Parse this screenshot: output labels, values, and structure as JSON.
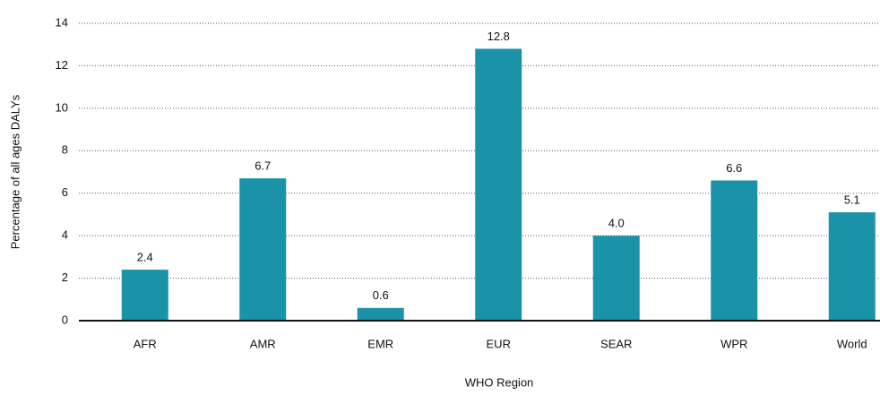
{
  "chart_data": {
    "type": "bar",
    "x_label": "WHO Region",
    "y_label": "Percentage of all ages DALYs",
    "categories": [
      "AFR",
      "AMR",
      "EMR",
      "EUR",
      "SEAR",
      "WPR",
      "World"
    ],
    "values": [
      2.4,
      6.7,
      0.6,
      12.8,
      4.0,
      6.6,
      5.1
    ],
    "value_labels": [
      "2.4",
      "6.7",
      "0.6",
      "12.8",
      "4.0",
      "6.6",
      "5.1"
    ],
    "color": "#1a93a8",
    "ylim": [
      0,
      14
    ],
    "yticks": [
      0,
      2,
      4,
      6,
      8,
      10,
      12,
      14
    ],
    "grid": true
  }
}
